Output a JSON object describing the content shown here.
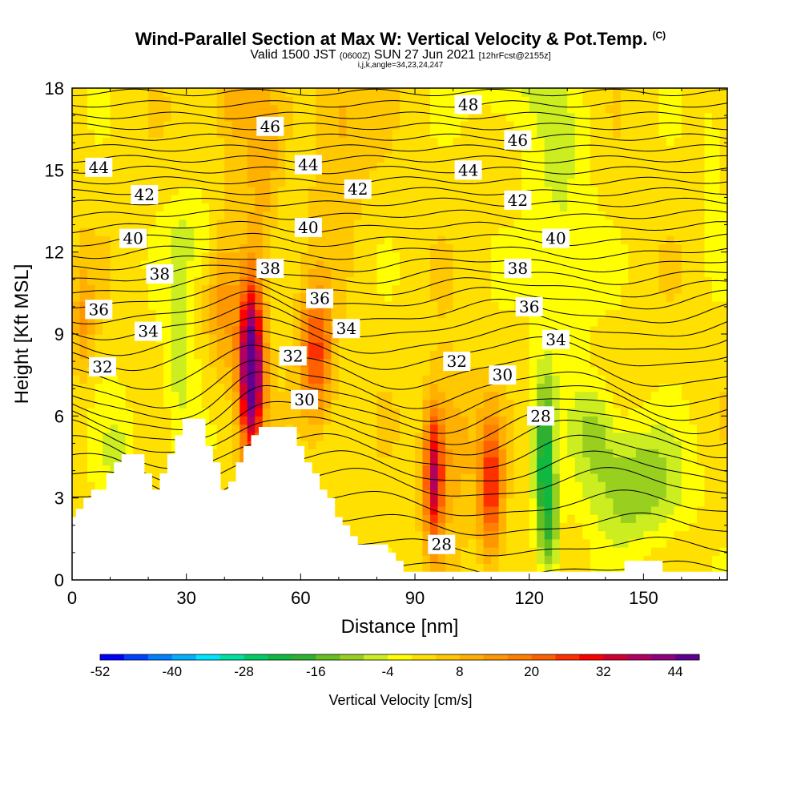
{
  "header": {
    "title": "Wind-Parallel Section at Max W: Vertical Velocity & Pot.Temp.",
    "copyright": "(C)",
    "valid_prefix": "Valid 1500 JST",
    "valid_utc": "(0600Z)",
    "valid_date": "SUN 27 Jun 2021",
    "forecast": "[12hrFcst@2155z]",
    "params": "i,j,k,angle=34,23,24,247"
  },
  "chart_data": {
    "type": "heatmap",
    "title": "Wind-Parallel Section at Max W: Vertical Velocity & Pot.Temp.",
    "xlabel": "Distance [nm]",
    "ylabel": "Height [Kft MSL]",
    "xlim": [
      0,
      172
    ],
    "ylim": [
      0,
      18
    ],
    "x_ticks": [
      "0",
      "30",
      "60",
      "90",
      "120",
      "150"
    ],
    "y_ticks": [
      "0",
      "3",
      "6",
      "9",
      "12",
      "15",
      "18"
    ],
    "x_tick_values": [
      0,
      30,
      60,
      90,
      120,
      150
    ],
    "y_tick_values": [
      0,
      3,
      6,
      9,
      12,
      15,
      18
    ],
    "colorbar": {
      "title": "Vertical Velocity [cm/s]",
      "min": -52,
      "max": 48,
      "step": 4,
      "tick_labels": [
        "-52",
        "-40",
        "-28",
        "-16",
        "-4",
        "8",
        "20",
        "32",
        "44"
      ],
      "tick_values": [
        -52,
        -40,
        -28,
        -16,
        -4,
        8,
        20,
        32,
        44
      ],
      "colors": [
        "#0000ff",
        "#0040ff",
        "#0080ff",
        "#00b0ff",
        "#00e5ff",
        "#00e0a0",
        "#00cc66",
        "#10b840",
        "#30b030",
        "#66c020",
        "#99d020",
        "#ccee20",
        "#ffff00",
        "#ffe000",
        "#ffc800",
        "#ffb000",
        "#ff9800",
        "#ff8000",
        "#ff6000",
        "#ff3000",
        "#ff0000",
        "#d00030",
        "#b00060",
        "#900080",
        "#600090"
      ]
    },
    "terrain_heights_kft": [
      2.3,
      2.6,
      2.6,
      3.0,
      3.0,
      3.3,
      3.3,
      3.3,
      3.3,
      3.9,
      3.9,
      4.3,
      4.3,
      4.6,
      4.6,
      4.6,
      4.6,
      4.6,
      4.6,
      3.9,
      3.9,
      3.3,
      3.3,
      3.9,
      3.9,
      4.6,
      4.6,
      5.3,
      5.3,
      5.9,
      5.9,
      5.9,
      5.9,
      5.9,
      5.9,
      4.9,
      4.9,
      4.3,
      4.3,
      3.3,
      3.3,
      3.6,
      3.6,
      4.3,
      4.3,
      4.9,
      4.9,
      5.3,
      5.3,
      5.6,
      5.6,
      5.6,
      5.6,
      5.6,
      5.6,
      5.6,
      5.6,
      5.6,
      5.6,
      4.9,
      4.9,
      4.3,
      4.3,
      3.9,
      3.9,
      3.3,
      3.3,
      3.0,
      3.0,
      2.3,
      2.3,
      2.0,
      2.0,
      1.6,
      1.6,
      1.3,
      1.3,
      1.3,
      1.3,
      1.3,
      1.3,
      1.3,
      1.3,
      1.0,
      1.0,
      0.7,
      0.7,
      0.3,
      0.3,
      0.3,
      0.3,
      0.3,
      0.3,
      0.3,
      0.3,
      0.3,
      0.3,
      0.3,
      0.3,
      0.3,
      0.3,
      0.3,
      0.3,
      0.3,
      0.3,
      0.3,
      0.3,
      0.3,
      0.3,
      0.3,
      0.3,
      0.3,
      0.3,
      0.3,
      0.3,
      0.3,
      0.3,
      0.3,
      0.3,
      0.3,
      0.3,
      0.3,
      0.3,
      0.3,
      0.3,
      0.3,
      0.3,
      0.3,
      0.3,
      0.3,
      0.3,
      0.3,
      0.3,
      0.3,
      0.3,
      0.3,
      0.3,
      0.3,
      0.3,
      0.3,
      0.3,
      0.3,
      0.3,
      0.3,
      0.3,
      0.7,
      0.7,
      0.7,
      0.7,
      0.7,
      0.7,
      0.7,
      0.7,
      0.7,
      0.7,
      0.3,
      0.3,
      0.3,
      0.3,
      0.3,
      0.3,
      0.3,
      0.3,
      0.3,
      0.3,
      0.3,
      0.3,
      0.3,
      0.3,
      0.3,
      0.3,
      0.3,
      0.3,
      0.3,
      0.3,
      0.3
    ],
    "vertical_velocity_features": [
      {
        "x": 47,
        "y": 7.8,
        "sx": 2.2,
        "sy": 2.2,
        "w": 52
      },
      {
        "x": 64,
        "y": 8.2,
        "sx": 3.0,
        "sy": 1.7,
        "w": 24
      },
      {
        "x": 95,
        "y": 3.8,
        "sx": 1.8,
        "sy": 1.8,
        "w": 32
      },
      {
        "x": 110,
        "y": 3.4,
        "sx": 2.2,
        "sy": 1.8,
        "w": 26
      },
      {
        "x": 124,
        "y": 4.0,
        "sx": 1.8,
        "sy": 2.2,
        "w": -24
      },
      {
        "x": 126,
        "y": 1.5,
        "sx": 1.5,
        "sy": 1.2,
        "w": -10
      },
      {
        "x": 148,
        "y": 3.5,
        "sx": 9.0,
        "sy": 1.5,
        "w": -14
      },
      {
        "x": 137,
        "y": 5.5,
        "sx": 4.0,
        "sy": 1.2,
        "w": -10
      },
      {
        "x": 28,
        "y": 8.0,
        "sx": 3.0,
        "sy": 3.0,
        "w": -8
      },
      {
        "x": 12,
        "y": 4.5,
        "sx": 4.0,
        "sy": 1.5,
        "w": -6
      },
      {
        "x": 33,
        "y": 12.5,
        "sx": 5.0,
        "sy": 1.2,
        "w": -6
      },
      {
        "x": 128,
        "y": 13.0,
        "sx": 6.0,
        "sy": 4.0,
        "w": -7
      },
      {
        "x": 115,
        "y": 18.0,
        "sx": 8.0,
        "sy": 1.2,
        "w": -6
      },
      {
        "x": 168,
        "y": 15.0,
        "sx": 2.0,
        "sy": 2.0,
        "w": -6
      },
      {
        "x": 100,
        "y": 5.0,
        "sx": 4.0,
        "sy": 2.0,
        "w": 10
      },
      {
        "x": 70,
        "y": 17.0,
        "sx": 5.0,
        "sy": 3.0,
        "w": 8
      },
      {
        "x": 50,
        "y": 15.0,
        "sx": 3.0,
        "sy": 3.0,
        "w": 8
      },
      {
        "x": 40,
        "y": 10.0,
        "sx": 3.0,
        "sy": 2.0,
        "w": 10
      },
      {
        "x": 42,
        "y": 18.0,
        "sx": 3.0,
        "sy": 2.0,
        "w": 10
      },
      {
        "x": 3,
        "y": 9.5,
        "sx": 2.0,
        "sy": 1.5,
        "w": 10
      }
    ],
    "theta_contour_labels": [
      {
        "text": "48",
        "x": 104,
        "y": 17.4
      },
      {
        "text": "46",
        "x": 52,
        "y": 16.6
      },
      {
        "text": "46",
        "x": 117,
        "y": 16.1
      },
      {
        "text": "44",
        "x": 7,
        "y": 15.1
      },
      {
        "text": "44",
        "x": 62,
        "y": 15.2
      },
      {
        "text": "44",
        "x": 104,
        "y": 15.0
      },
      {
        "text": "42",
        "x": 19,
        "y": 14.1
      },
      {
        "text": "42",
        "x": 75,
        "y": 14.3
      },
      {
        "text": "42",
        "x": 117,
        "y": 13.9
      },
      {
        "text": "40",
        "x": 16,
        "y": 12.5
      },
      {
        "text": "40",
        "x": 62,
        "y": 12.9
      },
      {
        "text": "40",
        "x": 127,
        "y": 12.5
      },
      {
        "text": "38",
        "x": 23,
        "y": 11.2
      },
      {
        "text": "38",
        "x": 52,
        "y": 11.4
      },
      {
        "text": "38",
        "x": 117,
        "y": 11.4
      },
      {
        "text": "36",
        "x": 7,
        "y": 9.9
      },
      {
        "text": "36",
        "x": 65,
        "y": 10.3
      },
      {
        "text": "36",
        "x": 120,
        "y": 10.0
      },
      {
        "text": "34",
        "x": 20,
        "y": 9.1
      },
      {
        "text": "34",
        "x": 72,
        "y": 9.2
      },
      {
        "text": "34",
        "x": 127,
        "y": 8.8
      },
      {
        "text": "32",
        "x": 8,
        "y": 7.8
      },
      {
        "text": "32",
        "x": 58,
        "y": 8.2
      },
      {
        "text": "32",
        "x": 101,
        "y": 8.0
      },
      {
        "text": "30",
        "x": 61,
        "y": 6.6
      },
      {
        "text": "30",
        "x": 113,
        "y": 7.5
      },
      {
        "text": "28",
        "x": 123,
        "y": 6.0
      },
      {
        "text": "28",
        "x": 97,
        "y": 1.3
      }
    ]
  }
}
